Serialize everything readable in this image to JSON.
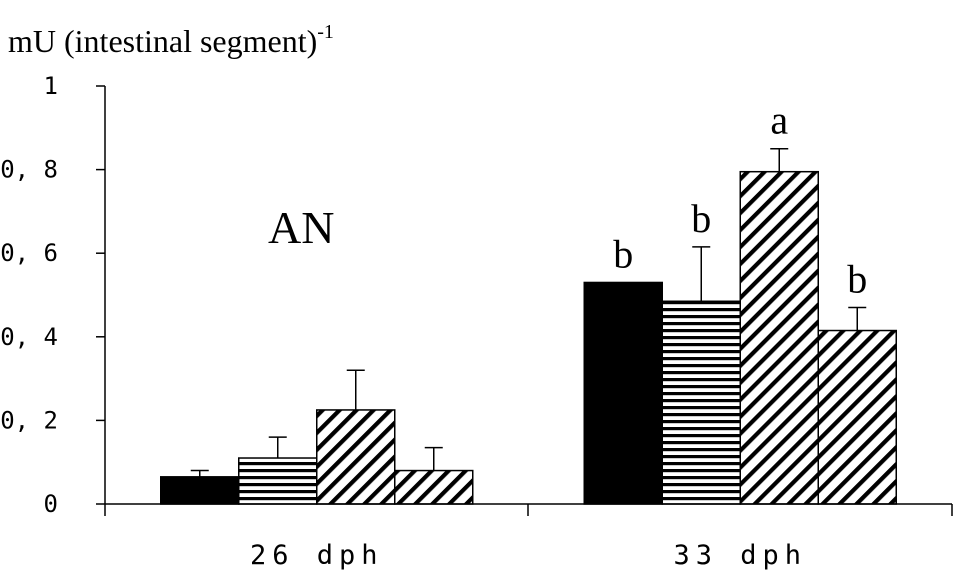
{
  "chart_data": {
    "type": "bar",
    "ylabel": "mU (intestinal segment)",
    "ylabel_superscript": "-1",
    "panel_label": "AN",
    "ylim": [
      0,
      1
    ],
    "yticks": [
      {
        "value": 0,
        "label": "0"
      },
      {
        "value": 0.2,
        "label": "0, 2"
      },
      {
        "value": 0.4,
        "label": "0, 4"
      },
      {
        "value": 0.6,
        "label": "0, 6"
      },
      {
        "value": 0.8,
        "label": "0, 8"
      },
      {
        "value": 1,
        "label": "1"
      }
    ],
    "categories": [
      "26  dph",
      "33  dph"
    ],
    "series": [
      {
        "pattern": "solid",
        "values": [
          0.065,
          0.53
        ],
        "errors": [
          0.015,
          0.0
        ],
        "letters": [
          "",
          "b"
        ]
      },
      {
        "pattern": "horizontal",
        "values": [
          0.11,
          0.485
        ],
        "errors": [
          0.05,
          0.13
        ],
        "letters": [
          "",
          "b"
        ]
      },
      {
        "pattern": "diagonal",
        "values": [
          0.225,
          0.795
        ],
        "errors": [
          0.095,
          0.055
        ],
        "letters": [
          "",
          "a"
        ]
      },
      {
        "pattern": "diagonal",
        "values": [
          0.08,
          0.415
        ],
        "errors": [
          0.055,
          0.055
        ],
        "letters": [
          "",
          "b"
        ]
      }
    ],
    "grid": false,
    "legend": "none"
  }
}
